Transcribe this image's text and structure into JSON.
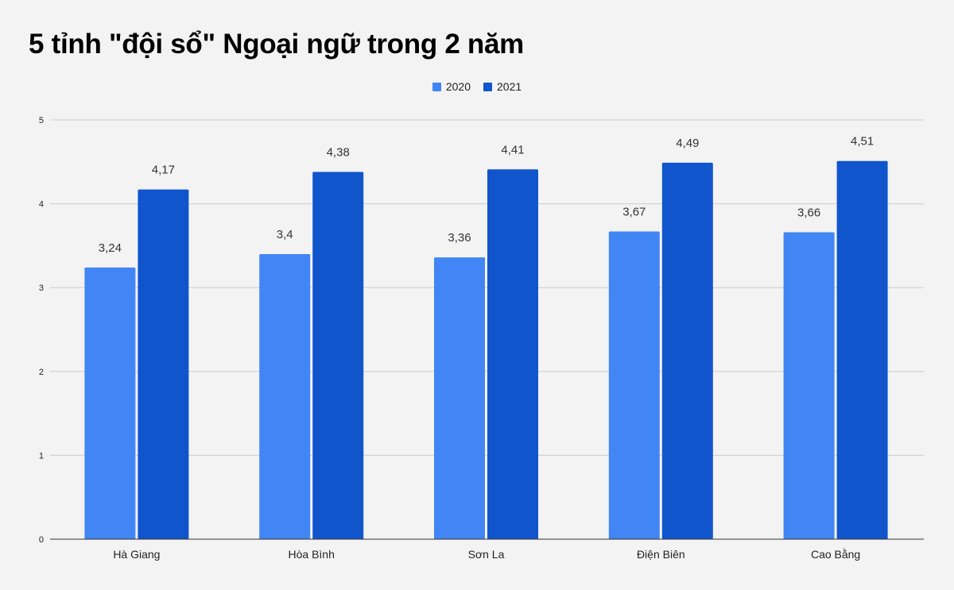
{
  "chart_data": {
    "type": "bar",
    "title": "5 tỉnh \"đội sổ\" Ngoại ngữ trong 2 năm",
    "xlabel": "",
    "ylabel": "",
    "categories": [
      "Hà Giang",
      "Hòa Bình",
      "Sơn La",
      "Điện Biên",
      "Cao Bằng"
    ],
    "series": [
      {
        "name": "2020",
        "color": "#4285f4",
        "values": [
          3.24,
          3.4,
          3.36,
          3.67,
          3.66
        ],
        "labels": [
          "3,24",
          "3,4",
          "3,36",
          "3,67",
          "3,66"
        ]
      },
      {
        "name": "2021",
        "color": "#1155cc",
        "values": [
          4.17,
          4.38,
          4.41,
          4.49,
          4.51
        ],
        "labels": [
          "4,17",
          "4,38",
          "4,41",
          "4,49",
          "4,51"
        ]
      }
    ],
    "ylim": [
      0,
      5
    ],
    "yticks": [
      0,
      1,
      2,
      3,
      4,
      5
    ],
    "grid": true,
    "legend_position": "top"
  }
}
